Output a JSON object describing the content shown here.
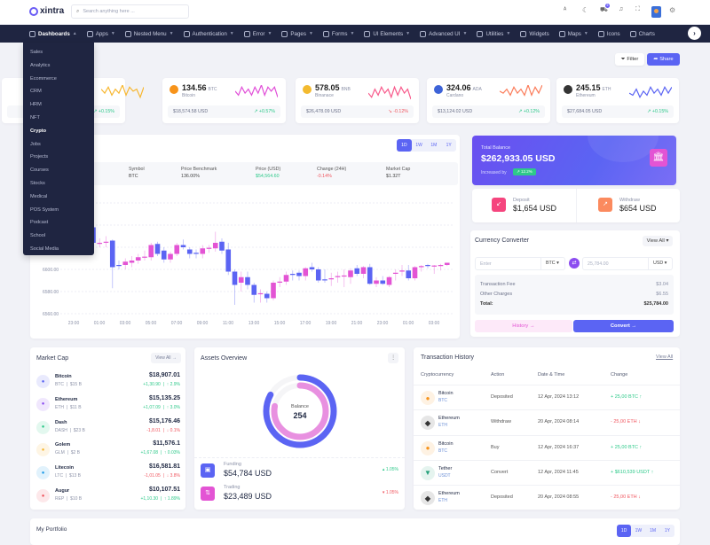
{
  "header": {
    "logo": "xintra",
    "search_placeholder": "Search anything here ...",
    "cart_badge": "5",
    "icons": [
      "translate-icon",
      "moon-icon",
      "cart-icon",
      "bell-icon",
      "fullscreen-icon",
      "avatar",
      "gear-icon"
    ]
  },
  "nav": {
    "items": [
      {
        "label": "Dashboards",
        "active": true,
        "chev": true
      },
      {
        "label": "Apps",
        "chev": true
      },
      {
        "label": "Nested Menu",
        "chev": true
      },
      {
        "label": "Authentication",
        "chev": true
      },
      {
        "label": "Error",
        "chev": true
      },
      {
        "label": "Pages",
        "chev": true
      },
      {
        "label": "Forms",
        "chev": true
      },
      {
        "label": "UI Elements",
        "chev": true
      },
      {
        "label": "Advanced UI",
        "chev": true
      },
      {
        "label": "Utilities",
        "chev": true
      },
      {
        "label": "Widgets",
        "chev": false
      },
      {
        "label": "Maps",
        "chev": true
      },
      {
        "label": "Icons",
        "chev": false
      },
      {
        "label": "Charts",
        "chev": false
      }
    ]
  },
  "dropdown": [
    "Sales",
    "Analytics",
    "Ecommerce",
    "CRM",
    "HRM",
    "NFT",
    "Crypto",
    "Jobs",
    "Projects",
    "Courses",
    "Stocks",
    "Medical",
    "POS System",
    "Podcast",
    "School",
    "Social Media"
  ],
  "dropdown_active": "Crypto",
  "toolbar": {
    "filter": "Filter",
    "share": "Share"
  },
  "stats": [
    {
      "value": "",
      "unit": "",
      "name": "",
      "usd": "",
      "change": "+0.15%",
      "dir": "up",
      "color": "#f7b731",
      "spark": [
        5,
        3,
        6,
        2,
        5,
        3,
        7,
        2,
        6,
        4,
        5,
        1,
        6
      ]
    },
    {
      "value": "134.56",
      "unit": "BTC",
      "name": "Bitcoin",
      "usd": "$18,574.58 USD",
      "change": "+0.57%",
      "dir": "up",
      "color": "#e14fd8",
      "coin": "#f7931a",
      "spark": [
        4,
        2,
        6,
        3,
        5,
        2,
        6,
        3,
        7,
        2,
        6,
        4,
        6,
        1
      ]
    },
    {
      "value": "578.05",
      "unit": "BNB",
      "name": "Binanace",
      "usd": "$26,478.09 USD",
      "change": "-0.12%",
      "dir": "down",
      "color": "#f85b8c",
      "coin": "#f3ba2f",
      "spark": [
        3,
        1,
        5,
        2,
        6,
        3,
        5,
        1,
        6,
        2,
        6,
        3,
        5,
        0
      ]
    },
    {
      "value": "324.06",
      "unit": "ADA",
      "name": "Cardano",
      "usd": "$13,124.02 USD",
      "change": "+0.12%",
      "dir": "up",
      "color": "#fb7c5a",
      "coin": "#3d63d8",
      "spark": [
        4,
        3,
        5,
        2,
        6,
        3,
        5,
        2,
        7,
        2,
        6,
        3,
        7
      ]
    },
    {
      "value": "245.15",
      "unit": "ETH",
      "name": "Ethereum",
      "usd": "$27,684.05 USD",
      "change": "+0.15%",
      "dir": "up",
      "color": "#5b64f3",
      "coin": "#343434",
      "spark": [
        3,
        2,
        5,
        1,
        4,
        2,
        6,
        3,
        5,
        2,
        6,
        3,
        6
      ]
    }
  ],
  "chart": {
    "periods": [
      "1D",
      "1W",
      "1M",
      "1Y"
    ],
    "active": "1D",
    "info": [
      {
        "label": "Symbol",
        "value": "BTC"
      },
      {
        "label": "Price Benchmark",
        "value": "136.00%"
      },
      {
        "label": "Price (USD)",
        "value": "$54,564.60",
        "tone": "up"
      },
      {
        "label": "Change (24H)",
        "value": "-0.14%",
        "tone": "down"
      },
      {
        "label": "Market Cap",
        "value": "$1.32T"
      }
    ]
  },
  "chart_data": {
    "type": "candlestick",
    "y_ticks": [
      "6600.00",
      "6580.00",
      "6560.00"
    ],
    "x_ticks": [
      "23:00",
      "01:00",
      "03:00",
      "05:00",
      "07:00",
      "09:00",
      "11:00",
      "13:00",
      "15:00",
      "17:00",
      "19:00",
      "21:00",
      "23:00",
      "01:00",
      "03:00"
    ],
    "grid": true,
    "up_color": "#e354d4",
    "down_color": "#5b64f3",
    "candles": [
      [
        "00:30",
        6638,
        6642,
        6620,
        6624
      ],
      [
        "01:00",
        6624,
        6628,
        6620,
        6624
      ],
      [
        "01:30",
        6625,
        6630,
        6620,
        6625
      ],
      [
        "02:00",
        6626,
        6627,
        6583,
        6602
      ],
      [
        "02:30",
        6604,
        6608,
        6600,
        6603.5
      ],
      [
        "03:00",
        6604,
        6610,
        6600,
        6607
      ],
      [
        "03:30",
        6606,
        6612,
        6602,
        6608
      ],
      [
        "04:00",
        6608,
        6614,
        6605,
        6611
      ],
      [
        "04:30",
        6611,
        6617,
        6608,
        6611.5
      ],
      [
        "05:00",
        6611,
        6624,
        6608,
        6622
      ],
      [
        "05:30",
        6623,
        6625,
        6612,
        6614
      ],
      [
        "06:00",
        6617,
        6620,
        6606,
        6609
      ],
      [
        "06:30",
        6609,
        6616,
        6606,
        6614
      ],
      [
        "07:00",
        6614,
        6624,
        6612,
        6622
      ],
      [
        "07:30",
        6622,
        6627,
        6618,
        6620
      ],
      [
        "08:00",
        6618,
        6620,
        6610,
        6614
      ],
      [
        "08:30",
        6615,
        6618,
        6610,
        6614
      ],
      [
        "09:00",
        6614,
        6622,
        6610,
        6619
      ],
      [
        "09:30",
        6619,
        6622,
        6615,
        6619.5
      ],
      [
        "10:00",
        6619,
        6634,
        6616,
        6624
      ],
      [
        "10:30",
        6625,
        6628,
        6614,
        6617
      ],
      [
        "11:00",
        6618,
        6624,
        6595,
        6598
      ],
      [
        "11:30",
        6598,
        6600,
        6568,
        6586
      ],
      [
        "12:00",
        6588,
        6598,
        6580,
        6593
      ],
      [
        "12:30",
        6593,
        6598,
        6582,
        6586
      ],
      [
        "13:00",
        6586,
        6588,
        6570,
        6577
      ],
      [
        "13:30",
        6578,
        6582,
        6570,
        6578.5
      ],
      [
        "14:00",
        6578,
        6580,
        6570,
        6574
      ],
      [
        "14:30",
        6574,
        6590,
        6572,
        6588
      ],
      [
        "15:00",
        6588,
        6593,
        6584,
        6589
      ],
      [
        "15:30",
        6589,
        6598,
        6586,
        6595
      ],
      [
        "16:00",
        6596,
        6599,
        6590,
        6595
      ],
      [
        "16:30",
        6597,
        6599,
        6590,
        6594
      ],
      [
        "17:00",
        6594,
        6602,
        6590,
        6601
      ],
      [
        "17:30",
        6602,
        6606,
        6598,
        6600
      ],
      [
        "18:00",
        6600,
        6602,
        6588,
        6590
      ],
      [
        "18:30",
        6591,
        6600,
        6588,
        6590.5
      ],
      [
        "19:00",
        6591,
        6597,
        6585,
        6592
      ],
      [
        "19:30",
        6593,
        6598,
        6588,
        6594
      ],
      [
        "20:00",
        6594,
        6600,
        6584,
        6594.5
      ],
      [
        "20:30",
        6593,
        6601,
        6587,
        6599
      ],
      [
        "21:00",
        6601,
        6604,
        6594,
        6596
      ],
      [
        "21:30",
        6596,
        6603,
        6592,
        6602
      ],
      [
        "22:00",
        6602,
        6605,
        6586,
        6587
      ],
      [
        "22:30",
        6587,
        6593,
        6584,
        6590
      ],
      [
        "23:00",
        6590,
        6594,
        6586,
        6587
      ],
      [
        "23:30",
        6586,
        6594,
        6584,
        6593
      ],
      [
        "00:00",
        6596,
        6600,
        6590,
        6597
      ],
      [
        "00:30",
        6598,
        6604,
        6594,
        6599
      ],
      [
        "01:00",
        6599,
        6604,
        6590,
        6592
      ],
      [
        "01:30",
        6592,
        6603,
        6590,
        6602
      ],
      [
        "02:00",
        6602,
        6604,
        6598,
        6603
      ],
      [
        "02:30",
        6604,
        6605,
        6601,
        6603
      ],
      [
        "03:00",
        6603,
        6604,
        6596,
        6603.5
      ],
      [
        "03:30",
        6603,
        6605,
        6599,
        6604
      ],
      [
        "04:00",
        6604,
        6606,
        6603,
        6606
      ]
    ]
  },
  "balance": {
    "label": "Total Balance",
    "value": "$262,933.05 USD",
    "increased_label": "Increased by",
    "increase": "12.2%"
  },
  "deposit": {
    "label": "Deposit",
    "value": "$1,654 USD"
  },
  "withdraw": {
    "label": "Withdraw",
    "value": "$654 USD"
  },
  "converter": {
    "title": "Currency Converter",
    "view_all": "View All",
    "from_placeholder": "Enter",
    "from_currency": "BTC",
    "to_value": "25,784.00",
    "to_currency": "USD",
    "fee_label": "Transaction Fee",
    "fee": "$3.04",
    "other_label": "Other Charges",
    "other": "$6.55",
    "total_label": "Total:",
    "total": "$25,784.00",
    "history": "History →",
    "convert": "Convert →"
  },
  "market_cap": {
    "title": "Market Cap",
    "view_all": "View All →",
    "rows": [
      {
        "name": "Bitcoin",
        "sym": "BTC",
        "cap": "$15 B",
        "price": "$18,907.01",
        "chg": "+1,30.90",
        "pct": "↑ 2.9%",
        "dir": "up",
        "color": "#5b64f3"
      },
      {
        "name": "Ethereum",
        "sym": "ETH",
        "cap": "$11 B",
        "price": "$15,135.25",
        "chg": "+1,07.09",
        "pct": "↑ 3.0%",
        "dir": "up",
        "color": "#8c4df0"
      },
      {
        "name": "Dash",
        "sym": "DASH",
        "cap": "$23 B",
        "price": "$15,176.46",
        "chg": "-1,8.01",
        "pct": "↓ 0.1%",
        "dir": "down",
        "color": "#2ec98a"
      },
      {
        "name": "Golem",
        "sym": "GLM",
        "cap": "$2 B",
        "price": "$11,576.1",
        "chg": "+1,67.08",
        "pct": "↑ 0.03%",
        "dir": "up",
        "color": "#f7b731"
      },
      {
        "name": "Litecoin",
        "sym": "LTC",
        "cap": "$13 B",
        "price": "$16,581.81",
        "chg": "-1,01.05",
        "pct": "↓ 3.8%",
        "dir": "down",
        "color": "#1e9ce8"
      },
      {
        "name": "Augur",
        "sym": "REP",
        "cap": "$10 B",
        "price": "$10,107.51",
        "chg": "+1,10.30",
        "pct": "↑ 1.89%",
        "dir": "up",
        "color": "#f0565f"
      }
    ]
  },
  "assets": {
    "title": "Assets Overview",
    "center_label": "Balance",
    "center_value": "254",
    "outer_pct": 83,
    "inner_pct": 78,
    "rows": [
      {
        "label": "Funding",
        "value": "$54,784 USD",
        "pct": "1.05%",
        "dir": "up",
        "color": "#5b64f3"
      },
      {
        "label": "Trading",
        "value": "$23,489 USD",
        "pct": "1.05%",
        "dir": "down",
        "color": "#e354d4"
      }
    ]
  },
  "transactions": {
    "title": "Transaction History",
    "view_all": "View All",
    "headers": [
      "Cryptocurrency",
      "Action",
      "Date & Time",
      "Change"
    ],
    "rows": [
      {
        "name": "Bitcoin",
        "sym": "BTC",
        "action": "Deposited",
        "date": "12 Apr, 2024 13:12",
        "change": "+ 25,00 BTC ↑",
        "dir": "up",
        "color": "#f7931a"
      },
      {
        "name": "Ethereum",
        "sym": "ETH",
        "action": "Withdraw",
        "date": "20 Apr, 2024 08:14",
        "change": "- 25,00 ETH ↓",
        "dir": "down",
        "color": "#343434"
      },
      {
        "name": "Bitcoin",
        "sym": "BTC",
        "action": "Buy",
        "date": "12 Apr, 2024 16:37",
        "change": "+ 25,00 BTC ↑",
        "dir": "up",
        "color": "#f7931a"
      },
      {
        "name": "Tether",
        "sym": "USDT",
        "action": "Convert",
        "date": "12 Apr, 2024 11:45",
        "change": "+ $610,539 USDT ↑",
        "dir": "up",
        "color": "#26a17b"
      },
      {
        "name": "Ethereum",
        "sym": "ETH",
        "action": "Deposited",
        "date": "20 Apr, 2024 08:55",
        "change": "- 25,00 ETH ↓",
        "dir": "down",
        "color": "#343434"
      }
    ]
  },
  "portfolio": {
    "title": "My Portfolio",
    "periods": [
      "1D",
      "1W",
      "1M",
      "1Y"
    ]
  }
}
